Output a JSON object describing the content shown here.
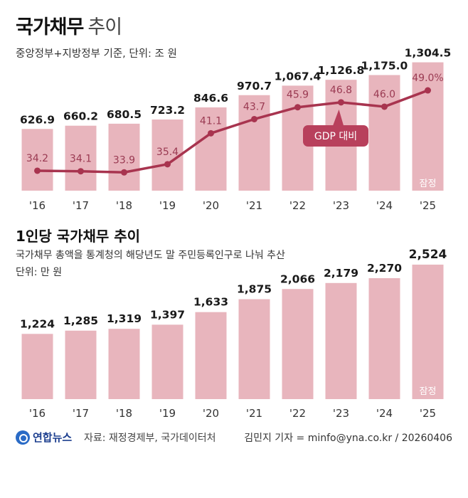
{
  "title": "국가채무",
  "title_suffix": "추이",
  "subtitle": "중앙정부+지방정부 기준, 단위: 조 원",
  "title2": "1인당 국가채무 추이",
  "subtitle2": "국가채무 총액을 통계청의 해당년도 말 주민등록인구로 나눠 추산",
  "unit2": "단위: 만 원",
  "footer": {
    "logo": "연합뉴스",
    "source": "자료: 재정경제부, 국가데이터처",
    "credit": "김민지 기자 = minfo@yna.co.kr / 20260406"
  },
  "colors": {
    "bar": "#e8b5bd",
    "line": "#a8344f",
    "label": "#1a1a1a",
    "ratio_label": "#9a3a52",
    "callout_bg": "#b8405c"
  },
  "chart_data": [
    {
      "type": "bar",
      "categories": [
        "'16",
        "'17",
        "'18",
        "'19",
        "'20",
        "'21",
        "'22",
        "'23",
        "'24",
        "'25"
      ],
      "values": [
        626.9,
        660.2,
        680.5,
        723.2,
        846.6,
        970.7,
        1067.4,
        1126.8,
        1175.0,
        1304.5
      ],
      "value_labels": [
        "626.9",
        "660.2",
        "680.5",
        "723.2",
        "846.6",
        "970.7",
        "1,067.4",
        "1,126.8",
        "1,175.0",
        "1,304.5"
      ],
      "title": "국가채무",
      "unit": "조 원",
      "last_bar_note": "잠정",
      "line_series": {
        "name": "GDP 대비",
        "values": [
          34.2,
          34.1,
          33.9,
          35.4,
          41.1,
          43.7,
          45.9,
          46.8,
          46.0,
          49.0
        ],
        "value_labels": [
          "34.2",
          "34.1",
          "33.9",
          "35.4",
          "41.1",
          "43.7",
          "45.9",
          "46.8",
          "46.0",
          "49.0%"
        ]
      }
    },
    {
      "type": "bar",
      "categories": [
        "'16",
        "'17",
        "'18",
        "'19",
        "'20",
        "'21",
        "'22",
        "'23",
        "'24",
        "'25"
      ],
      "values": [
        1224,
        1285,
        1319,
        1397,
        1633,
        1875,
        2066,
        2179,
        2270,
        2524
      ],
      "value_labels": [
        "1,224",
        "1,285",
        "1,319",
        "1,397",
        "1,633",
        "1,875",
        "2,066",
        "2,179",
        "2,270",
        "2,524"
      ],
      "title": "1인당 국가채무 추이",
      "unit": "만 원",
      "last_bar_note": "잠정"
    }
  ]
}
